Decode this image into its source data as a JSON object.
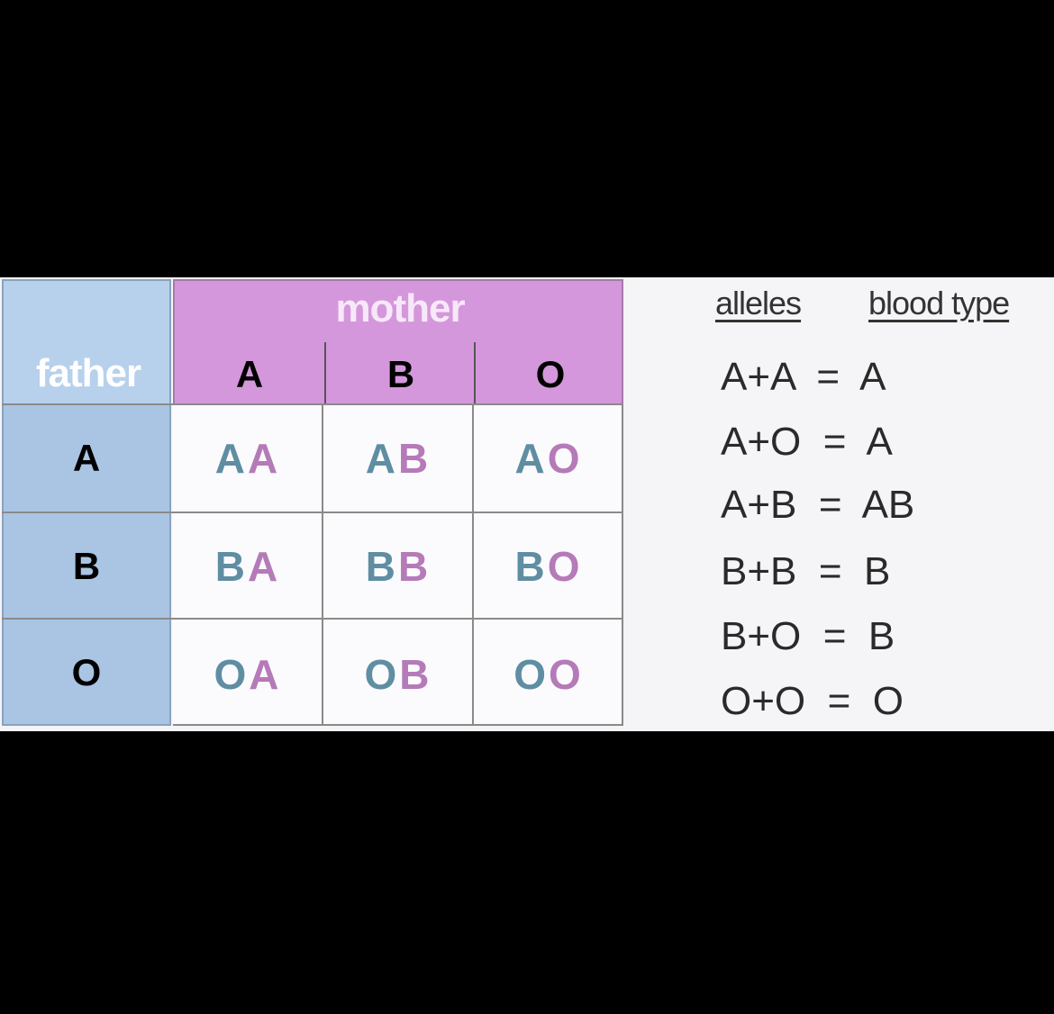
{
  "father": {
    "label": "father",
    "alleles": [
      "A",
      "B",
      "O"
    ]
  },
  "mother": {
    "label": "mother",
    "alleles": [
      "A",
      "B",
      "O"
    ]
  },
  "square": [
    [
      {
        "f": "A",
        "m": "A"
      },
      {
        "f": "A",
        "m": "B"
      },
      {
        "f": "A",
        "m": "O"
      }
    ],
    [
      {
        "f": "B",
        "m": "A"
      },
      {
        "f": "B",
        "m": "B"
      },
      {
        "f": "B",
        "m": "O"
      }
    ],
    [
      {
        "f": "O",
        "m": "A"
      },
      {
        "f": "O",
        "m": "B"
      },
      {
        "f": "O",
        "m": "O"
      }
    ]
  ],
  "legend": {
    "alleles_header": "alleles",
    "blood_type_header": "blood type",
    "rules": [
      {
        "alleles": "A+A",
        "eq": "=",
        "type": "A"
      },
      {
        "alleles": "A+O",
        "eq": "=",
        "type": "A"
      },
      {
        "alleles": "A+B",
        "eq": "=",
        "type": "AB"
      },
      {
        "alleles": "B+B",
        "eq": "=",
        "type": "B"
      },
      {
        "alleles": "B+O",
        "eq": "=",
        "type": "B"
      },
      {
        "alleles": "O+O",
        "eq": "=",
        "type": "O"
      }
    ]
  },
  "colors": {
    "father_allele": "#5f8ea3",
    "mother_allele": "#b57ab8",
    "father_panel": "#a9c5e3",
    "mother_panel": "#d597dc"
  }
}
